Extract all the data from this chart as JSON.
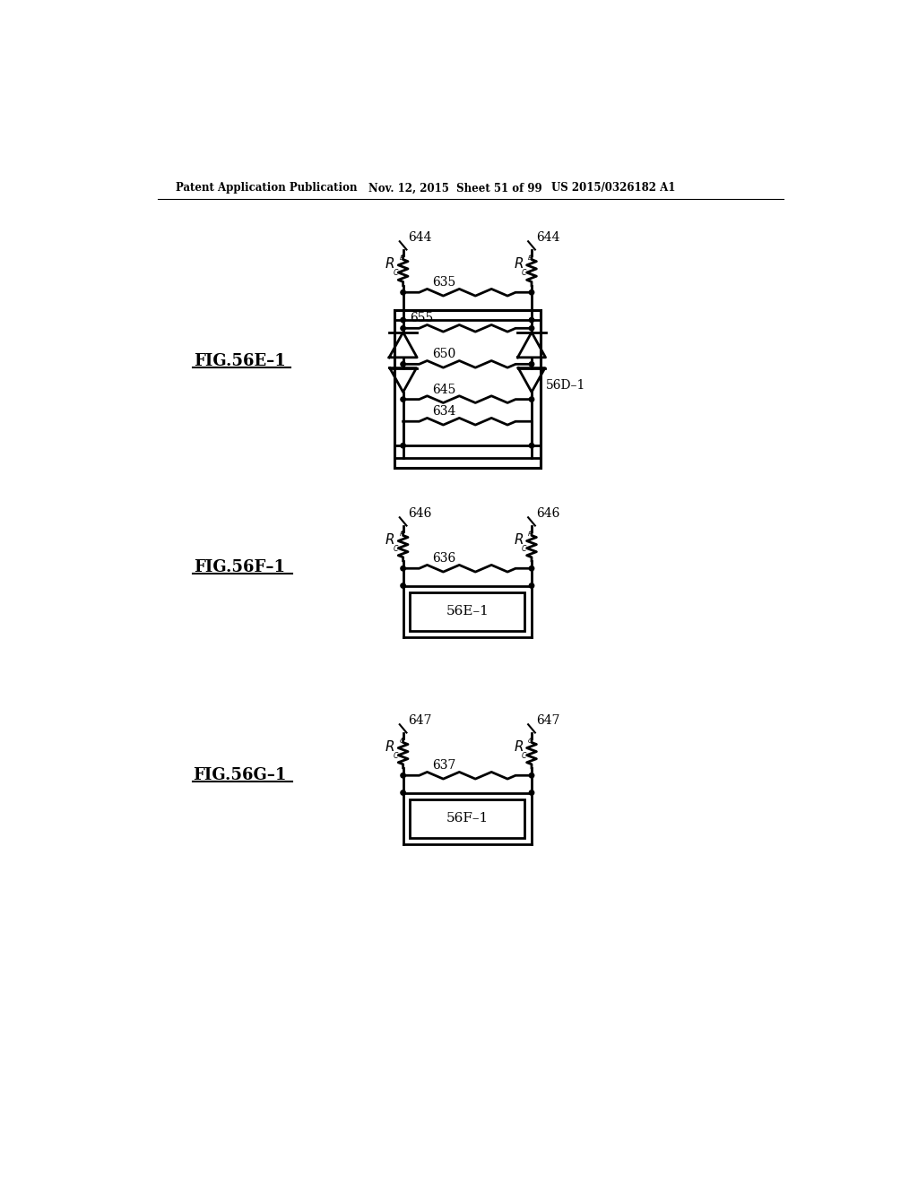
{
  "bg_color": "#ffffff",
  "header_text1": "Patent Application Publication",
  "header_text2": "Nov. 12, 2015  Sheet 51 of 99",
  "header_text3": "US 2015/0326182 A1",
  "fig1_label": "FIG.56E–1",
  "fig2_label": "FIG.56F–1",
  "fig3_label": "FIG.56G–1",
  "label_644": "644",
  "label_646": "646",
  "label_647": "647",
  "label_635": "635",
  "label_636": "636",
  "label_637": "637",
  "label_655": "655",
  "label_650": "650",
  "label_645": "645",
  "label_634": "634",
  "label_56D1": "56D–1",
  "label_56E1": "56E–1",
  "label_56F1": "56F–1",
  "lw": 2.0,
  "fig_width": 10.24,
  "fig_height": 13.2
}
